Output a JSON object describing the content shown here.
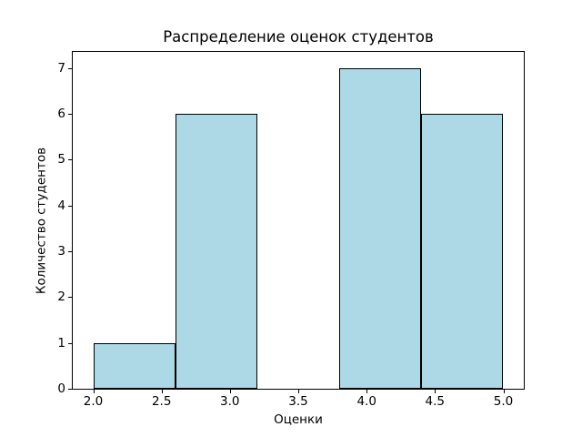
{
  "chart_data": {
    "type": "bar",
    "subtype": "histogram",
    "title": "Распределение оценок студентов",
    "xlabel": "Оценки",
    "ylabel": "Количество студентов",
    "bin_edges": [
      2.0,
      2.6,
      3.2,
      3.8,
      4.4,
      5.0
    ],
    "values": [
      1,
      6,
      0,
      7,
      6
    ],
    "x_ticks": [
      2.0,
      2.5,
      3.0,
      3.5,
      4.0,
      4.5,
      5.0
    ],
    "x_tick_labels": [
      "2.0",
      "2.5",
      "3.0",
      "3.5",
      "4.0",
      "4.5",
      "5.0"
    ],
    "y_ticks": [
      0,
      1,
      2,
      3,
      4,
      5,
      6,
      7
    ],
    "y_tick_labels": [
      "0",
      "1",
      "2",
      "3",
      "4",
      "5",
      "6",
      "7"
    ],
    "xlim": [
      1.85,
      5.15
    ],
    "ylim": [
      0,
      7.35
    ],
    "grid": false,
    "legend": null,
    "colors": {
      "bar_fill": "#ADD8E6",
      "bar_edge": "#000000",
      "axis": "#000000",
      "text": "#000000",
      "background": "#ffffff"
    }
  }
}
